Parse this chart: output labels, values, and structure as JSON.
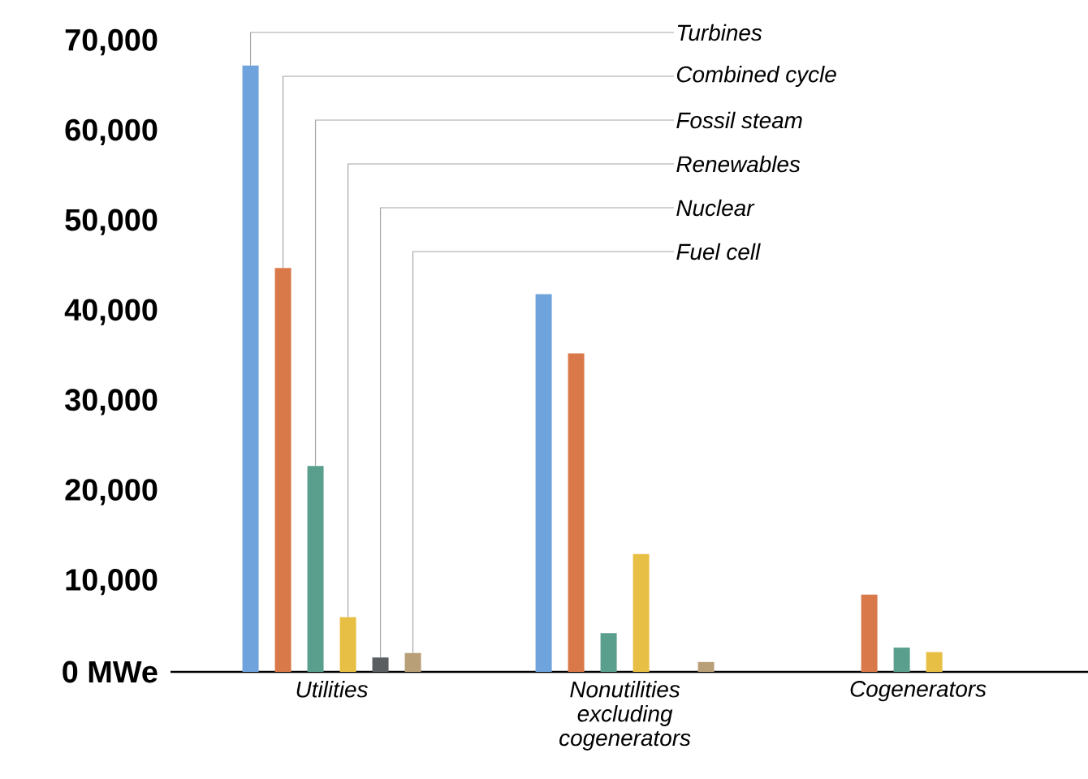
{
  "chart_data": {
    "type": "bar",
    "categories": [
      "Utilities",
      "Nonutilities excluding cogenerators",
      "Cogenerators"
    ],
    "series": [
      {
        "name": "Turbines",
        "color": "#6fa3dc",
        "values": [
          67400,
          42000,
          0
        ]
      },
      {
        "name": "Combined cycle",
        "color": "#d9794a",
        "values": [
          44900,
          35400,
          8600
        ]
      },
      {
        "name": "Fossil steam",
        "color": "#5a9e8e",
        "values": [
          22900,
          4300,
          2700
        ]
      },
      {
        "name": "Renewables",
        "color": "#e8bf45",
        "values": [
          6100,
          13100,
          2200
        ]
      },
      {
        "name": "Nuclear",
        "color": "#5a5e60",
        "values": [
          1600,
          0,
          0
        ]
      },
      {
        "name": "Fuel cell",
        "color": "#b89f78",
        "values": [
          2100,
          1100,
          0
        ]
      }
    ],
    "ylim": [
      0,
      70000
    ],
    "yticks": [
      {
        "value": 0,
        "label": "0  MWe"
      },
      {
        "value": 10000,
        "label": "10,000"
      },
      {
        "value": 20000,
        "label": "20,000"
      },
      {
        "value": 30000,
        "label": "30,000"
      },
      {
        "value": 40000,
        "label": "40,000"
      },
      {
        "value": 50000,
        "label": "50,000"
      },
      {
        "value": 60000,
        "label": "60,000"
      },
      {
        "value": 70000,
        "label": "70,000"
      }
    ],
    "grid": false
  }
}
